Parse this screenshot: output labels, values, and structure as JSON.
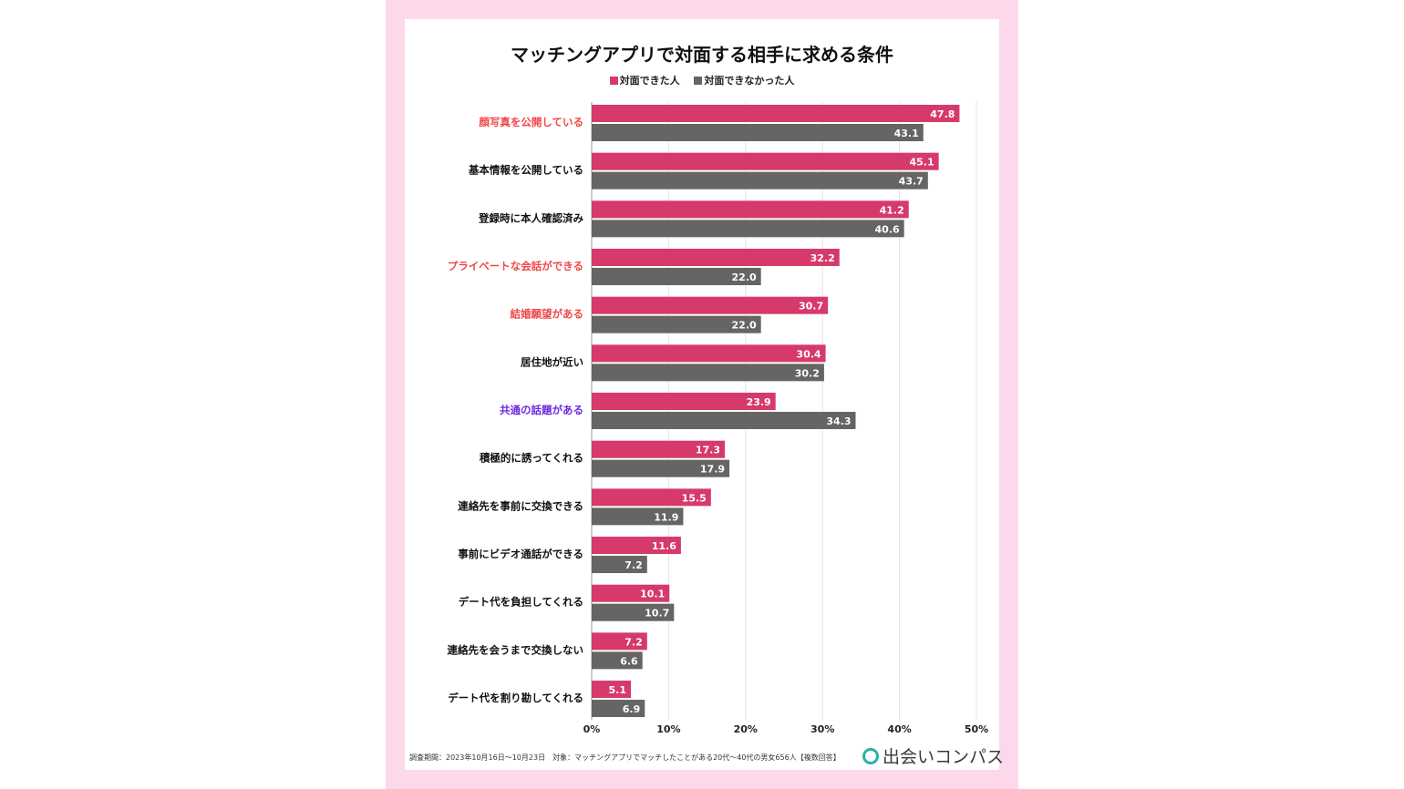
{
  "chart_data": {
    "type": "bar",
    "orientation": "horizontal",
    "title": "マッチングアプリで対面する相手に求める条件",
    "categories": [
      "顔写真を公開している",
      "基本情報を公開している",
      "登録時に本人確認済み",
      "プライベートな会話ができる",
      "結婚願望がある",
      "居住地が近い",
      "共通の話題がある",
      "積極的に誘ってくれる",
      "連絡先を事前に交換できる",
      "事前にビデオ通話ができる",
      "デート代を負担してくれる",
      "連絡先を会うまで交換しない",
      "デート代を割り勘してくれる"
    ],
    "category_colors": [
      "#f0464a",
      "#111111",
      "#111111",
      "#f0464a",
      "#f0464a",
      "#111111",
      "#6a2be0",
      "#111111",
      "#111111",
      "#111111",
      "#111111",
      "#111111",
      "#111111"
    ],
    "series": [
      {
        "name": "対面できた人",
        "color": "#d63a6a",
        "values": [
          47.8,
          45.1,
          41.2,
          32.2,
          30.7,
          30.4,
          23.9,
          17.3,
          15.5,
          11.6,
          10.1,
          7.2,
          5.1
        ]
      },
      {
        "name": "対面できなかった人",
        "color": "#666464",
        "values": [
          43.1,
          43.7,
          40.6,
          22.0,
          22.0,
          30.2,
          34.3,
          17.9,
          11.9,
          7.2,
          10.7,
          6.6,
          6.9
        ]
      }
    ],
    "xlim": [
      0,
      50
    ],
    "xticks": [
      "0%",
      "10%",
      "20%",
      "30%",
      "40%",
      "50%"
    ],
    "grid": true,
    "legend": "top-center"
  },
  "footer": "調査期間：2023年10月16日〜10月23日　対象：マッチングアプリでマッチしたことがある20代〜40代の男女656人【複数回答】",
  "logo": "出会いコンパス"
}
